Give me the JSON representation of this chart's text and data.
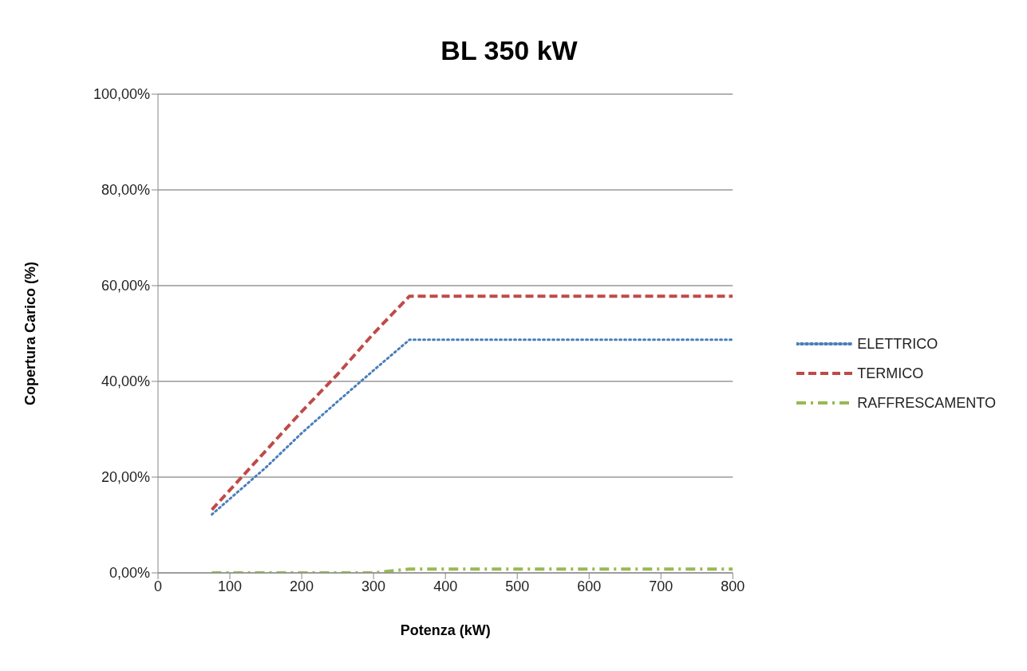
{
  "chart_data": {
    "type": "line",
    "title": "BL 350 kW",
    "xlabel": "Potenza (kW)",
    "ylabel": "Copertura Carico (%)",
    "series": [
      {
        "name": "ELETTRICO",
        "color": "#4a7ebb",
        "line_style": "dotted",
        "x": [
          75,
          150,
          200,
          250,
          300,
          350,
          800
        ],
        "values": [
          12.2,
          22,
          29.2,
          35.8,
          42.3,
          48.7,
          48.7
        ]
      },
      {
        "name": "TERMICO",
        "color": "#be4b48",
        "line_style": "dashed",
        "x": [
          75,
          150,
          200,
          250,
          300,
          350,
          800
        ],
        "values": [
          13.2,
          25.5,
          33.7,
          41.5,
          50,
          57.8,
          57.8
        ]
      },
      {
        "name": "RAFFRESCAMENTO",
        "color": "#98b954",
        "line_style": "dashdot",
        "x": [
          75,
          300,
          350,
          800
        ],
        "values": [
          0,
          0,
          0.8,
          0.8
        ]
      }
    ],
    "xlim": [
      0,
      800
    ],
    "xticks": [
      0,
      100,
      200,
      300,
      400,
      500,
      600,
      700,
      800
    ],
    "ylim": [
      0,
      100
    ],
    "yticks": [
      {
        "value": 0,
        "label": "0,00%"
      },
      {
        "value": 20,
        "label": "20,00%"
      },
      {
        "value": 40,
        "label": "40,00%"
      },
      {
        "value": 60,
        "label": "60,00%"
      },
      {
        "value": 80,
        "label": "80,00%"
      },
      {
        "value": 100,
        "label": "100,00%"
      }
    ],
    "grid": "y",
    "legend": "right",
    "marker": "none"
  }
}
